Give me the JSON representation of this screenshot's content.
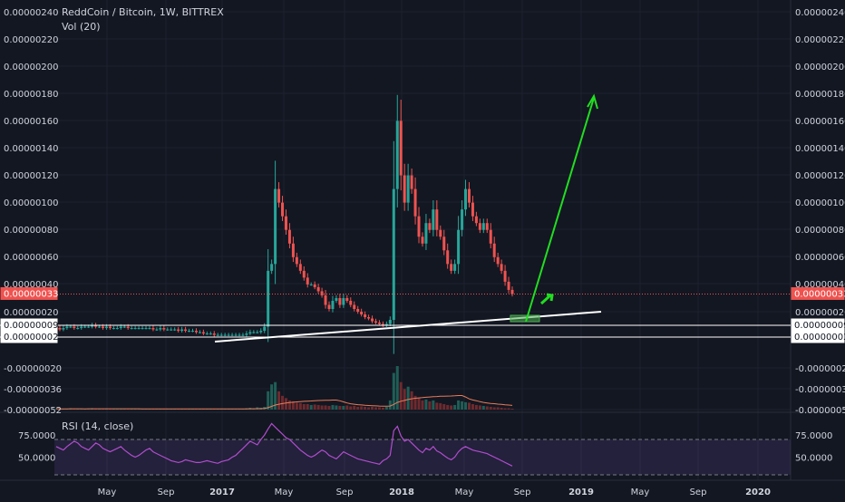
{
  "chart_data": [
    {
      "type": "candlestick",
      "title": "ReddCoin / Bitcoin, 1W, BITTREX",
      "subtitle": "Vol (20)",
      "ylim": [
        -5.2e-07,
        2.4e-06
      ],
      "y_ticks": [
        "0.00000240",
        "0.00000220",
        "0.00000200",
        "0.00000180",
        "0.00000160",
        "0.00000140",
        "0.00000120",
        "0.00000100",
        "0.00000080",
        "0.00000060",
        "0.00000040",
        "0.00000020",
        "-0.00000020",
        "-0.00000036",
        "-0.00000052"
      ],
      "last_price_label": "0.00000033",
      "line_labels": [
        "0.00000009",
        "0.00000002"
      ],
      "x_ticks": [
        "May",
        "Sep",
        "2017",
        "May",
        "Sep",
        "2018",
        "May",
        "Sep",
        "2019",
        "May",
        "Sep",
        "2020"
      ],
      "series": [
        {
          "close": [
            8e-08,
            7e-08,
            8e-08,
            9e-08,
            9e-08,
            8e-08,
            8e-08,
            9e-08,
            9e-08,
            9e-08,
            1e-07,
            9e-08,
            9e-08,
            8e-08,
            9e-08,
            8e-08,
            8e-08,
            8e-08,
            9e-08,
            9e-08,
            8e-08,
            8e-08,
            8e-08,
            8e-08,
            8e-08,
            8e-08,
            8e-08,
            7e-08,
            7e-08,
            8e-08,
            7e-08,
            7e-08,
            7e-08,
            7e-08,
            6e-08,
            7e-08,
            6e-08,
            6e-08,
            6e-08,
            5e-08,
            5e-08,
            4e-08,
            4e-08,
            4e-08,
            3e-08,
            3e-08,
            3e-08,
            3e-08,
            3e-08,
            3e-08,
            3e-08,
            3e-08,
            3e-08,
            4e-08,
            5e-08,
            5e-08,
            5e-08,
            6e-08,
            9e-08,
            5e-07,
            5.5e-07,
            1.1e-06,
            1e-06,
            9e-07,
            8e-07,
            7e-07,
            6e-07,
            5.5e-07,
            5e-07,
            4.5e-07,
            4e-07,
            4e-07,
            3.8e-07,
            3.5e-07,
            3.2e-07,
            2.5e-07,
            2.2e-07,
            2.8e-07,
            3e-07,
            2.5e-07,
            3e-07,
            2.8e-07,
            2.5e-07,
            2.2e-07,
            2e-07,
            1.8e-07,
            1.6e-07,
            1.5e-07,
            1.3e-07,
            1.2e-07,
            1.1e-07,
            1e-07,
            1.1e-07,
            1.4e-07,
            1.1e-06,
            1.6e-06,
            1.2e-06,
            1e-06,
            1.2e-06,
            1.1e-06,
            9e-07,
            7.5e-07,
            7e-07,
            8.5e-07,
            8e-07,
            9.5e-07,
            8e-07,
            7.5e-07,
            6.5e-07,
            5.5e-07,
            5e-07,
            5.5e-07,
            8e-07,
            9.5e-07,
            1.1e-06,
            1e-06,
            9e-07,
            8.5e-07,
            8e-07,
            8.5e-07,
            8e-07,
            7e-07,
            6e-07,
            5.5e-07,
            5e-07,
            4.2e-07,
            3.6e-07,
            3.3e-07
          ],
          "volume": [
            2,
            1,
            2,
            1,
            3,
            2,
            1,
            2,
            1,
            2,
            3,
            2,
            2,
            1,
            2,
            1,
            2,
            2,
            1,
            2,
            1,
            2,
            1,
            2,
            1,
            1,
            2,
            1,
            2,
            1,
            1,
            2,
            1,
            2,
            1,
            2,
            1,
            2,
            1,
            2,
            1,
            2,
            1,
            2,
            1,
            1,
            2,
            1,
            2,
            1,
            2,
            1,
            2,
            3,
            4,
            3,
            5,
            4,
            6,
            40,
            55,
            60,
            40,
            30,
            25,
            20,
            18,
            15,
            14,
            12,
            12,
            10,
            11,
            10,
            9,
            9,
            8,
            10,
            9,
            8,
            8,
            9,
            7,
            8,
            6,
            7,
            6,
            5,
            6,
            5,
            5,
            4,
            6,
            20,
            80,
            95,
            60,
            45,
            50,
            40,
            30,
            25,
            20,
            22,
            18,
            20,
            15,
            14,
            12,
            10,
            9,
            10,
            20,
            18,
            16,
            15,
            12,
            10,
            9,
            8,
            7,
            6,
            5,
            5,
            4,
            3,
            3,
            2
          ]
        }
      ],
      "annotations": [
        "support trendline",
        "target arrow"
      ]
    },
    {
      "type": "line",
      "title": "RSI (14, close)",
      "y_ticks": [
        "75.0000",
        "50.0000"
      ],
      "series": [
        {
          "values": [
            62,
            60,
            58,
            62,
            65,
            68,
            66,
            62,
            60,
            58,
            62,
            66,
            64,
            60,
            58,
            56,
            58,
            60,
            62,
            58,
            55,
            52,
            50,
            52,
            55,
            58,
            60,
            56,
            54,
            52,
            50,
            48,
            46,
            45,
            44,
            45,
            47,
            46,
            45,
            44,
            44,
            45,
            46,
            45,
            44,
            43,
            45,
            46,
            47,
            50,
            52,
            56,
            60,
            64,
            68,
            66,
            64,
            70,
            75,
            82,
            88,
            84,
            80,
            76,
            72,
            70,
            66,
            62,
            58,
            55,
            52,
            50,
            52,
            55,
            58,
            56,
            52,
            50,
            48,
            52,
            56,
            54,
            52,
            50,
            48,
            47,
            46,
            45,
            44,
            43,
            42,
            46,
            48,
            52,
            80,
            85,
            74,
            68,
            70,
            66,
            62,
            58,
            55,
            60,
            58,
            62,
            57,
            55,
            52,
            49,
            47,
            50,
            56,
            60,
            62,
            60,
            58,
            57,
            56,
            55,
            54,
            52,
            50,
            48,
            46,
            44,
            42,
            40
          ]
        }
      ]
    }
  ]
}
